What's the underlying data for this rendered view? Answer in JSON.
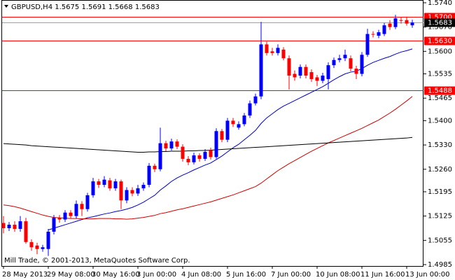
{
  "chart_data": {
    "type": "candlestick",
    "symbol": "GBPUSD,H4",
    "copyright": "Mill Trade, © 2001-2013, MetaQuotes Software Corp.",
    "categories": [
      "28 May 2013",
      null,
      null,
      null,
      null,
      null,
      null,
      null,
      "29 May 08:00",
      null,
      null,
      null,
      null,
      null,
      null,
      null,
      "30 May 16:00",
      null,
      null,
      null,
      null,
      null,
      null,
      null,
      "3 Jun 00:00",
      null,
      null,
      null,
      null,
      null,
      null,
      null,
      "4 Jun 08:00",
      null,
      null,
      null,
      null,
      null,
      null,
      null,
      "5 Jun 16:00",
      null,
      null,
      null,
      null,
      null,
      null,
      null,
      "7 Jun 00:00",
      null,
      null,
      null,
      null,
      null,
      null,
      null,
      "10 Jun 08:00",
      null,
      null,
      null,
      null,
      null,
      null,
      null,
      "11 Jun 16:00",
      null,
      null,
      null,
      null,
      null,
      null,
      null,
      "13 Jun 00:00",
      null
    ],
    "open": [
      1.5105,
      1.509,
      1.51,
      1.5088,
      1.511,
      1.505,
      1.504,
      1.503,
      1.503,
      1.508,
      1.512,
      1.5115,
      1.5135,
      1.5125,
      1.516,
      1.5145,
      1.5185,
      1.5225,
      1.5215,
      1.5228,
      1.5205,
      1.5225,
      1.517,
      1.52,
      1.519,
      1.5205,
      1.5215,
      1.527,
      1.526,
      1.5335,
      1.532,
      1.534,
      1.5325,
      1.529,
      1.528,
      1.53,
      1.529,
      1.5315,
      1.5295,
      1.537,
      1.5345,
      1.54,
      1.538,
      1.539,
      1.5415,
      1.545,
      1.547,
      1.562,
      1.56,
      1.5595,
      1.5605,
      1.558,
      1.5535,
      1.553,
      1.5555,
      1.554,
      1.5525,
      1.5515,
      1.552,
      1.556,
      1.5575,
      1.558,
      1.558,
      1.555,
      1.5535,
      1.559,
      1.565,
      1.5645,
      1.565,
      1.568,
      1.567,
      1.569,
      1.569,
      1.5675
    ],
    "high": [
      1.5125,
      1.5108,
      1.511,
      1.5125,
      1.512,
      1.5058,
      1.5048,
      1.5042,
      1.5088,
      1.5128,
      1.5128,
      1.5142,
      1.5142,
      1.517,
      1.5168,
      1.5192,
      1.5235,
      1.5232,
      1.524,
      1.5235,
      1.5232,
      1.523,
      1.5208,
      1.5208,
      1.5215,
      1.5222,
      1.5278,
      1.5276,
      1.538,
      1.5342,
      1.5348,
      1.5346,
      1.5332,
      1.5298,
      1.5308,
      1.5306,
      1.5318,
      1.5322,
      1.5378,
      1.5376,
      1.5408,
      1.5408,
      1.5398,
      1.5422,
      1.5458,
      1.5478,
      1.5685,
      1.5628,
      1.561,
      1.562,
      1.5612,
      1.5588,
      1.5545,
      1.5562,
      1.5562,
      1.5548,
      1.5532,
      1.5538,
      1.5568,
      1.5582,
      1.559,
      1.5605,
      1.5588,
      1.5558,
      1.5598,
      1.5665,
      1.5658,
      1.5662,
      1.5682,
      1.569,
      1.5705,
      1.5698,
      1.57,
      1.5691
    ],
    "low": [
      1.5075,
      1.5082,
      1.508,
      1.508,
      1.5045,
      1.5025,
      1.5015,
      1.5022,
      1.501,
      1.5072,
      1.5106,
      1.5108,
      1.5118,
      1.5118,
      1.5125,
      1.5138,
      1.5178,
      1.5206,
      1.5208,
      1.5198,
      1.5198,
      1.5145,
      1.5162,
      1.5182,
      1.5183,
      1.5198,
      1.5208,
      1.5252,
      1.5254,
      1.5312,
      1.5314,
      1.5318,
      1.5282,
      1.5272,
      1.5274,
      1.5282,
      1.5284,
      1.5288,
      1.529,
      1.5338,
      1.5338,
      1.5382,
      1.5374,
      1.5384,
      1.5408,
      1.5444,
      1.5462,
      1.5588,
      1.5588,
      1.5588,
      1.5574,
      1.549,
      1.5515,
      1.5522,
      1.5522,
      1.5512,
      1.55,
      1.5508,
      1.549,
      1.5552,
      1.5568,
      1.5572,
      1.5542,
      1.552,
      1.5528,
      1.5584,
      1.564,
      1.5638,
      1.5644,
      1.5662,
      1.5664,
      1.568,
      1.5674,
      1.5668
    ],
    "close": [
      1.509,
      1.51,
      1.5088,
      1.511,
      1.505,
      1.5035,
      1.503,
      1.5035,
      1.508,
      1.512,
      1.5115,
      1.5135,
      1.5125,
      1.516,
      1.5145,
      1.5185,
      1.5225,
      1.5215,
      1.523,
      1.5205,
      1.5225,
      1.517,
      1.52,
      1.519,
      1.5205,
      1.5215,
      1.527,
      1.526,
      1.5335,
      1.532,
      1.534,
      1.5325,
      1.529,
      1.528,
      1.53,
      1.529,
      1.531,
      1.5295,
      1.537,
      1.5345,
      1.54,
      1.539,
      1.539,
      1.5415,
      1.545,
      1.547,
      1.562,
      1.5595,
      1.5595,
      1.561,
      1.558,
      1.553,
      1.5525,
      1.5555,
      1.553,
      1.552,
      1.5515,
      1.553,
      1.556,
      1.5575,
      1.558,
      1.559,
      1.555,
      1.5535,
      1.559,
      1.565,
      1.5648,
      1.5655,
      1.5675,
      1.567,
      1.5695,
      1.5688,
      1.568,
      1.5683
    ],
    "up_color": "#0000ff",
    "down_color": "#ff0000",
    "moving_averages": [
      {
        "color": "#0000c0",
        "values": [
          null,
          null,
          null,
          null,
          null,
          null,
          null,
          null,
          1.5085,
          1.509,
          1.5095,
          1.51,
          1.5105,
          1.511,
          1.5115,
          1.512,
          1.5123,
          1.5127,
          1.5131,
          1.5134,
          1.5138,
          1.5141,
          1.5145,
          1.515,
          1.5157,
          1.5165,
          1.5175,
          1.5185,
          1.52,
          1.5212,
          1.5225,
          1.5235,
          1.5243,
          1.525,
          1.5258,
          1.5265,
          1.5272,
          1.5278,
          1.5288,
          1.5298,
          1.531,
          1.5322,
          1.5332,
          1.5345,
          1.5358,
          1.5372,
          1.5392,
          1.5408,
          1.542,
          1.5432,
          1.5442,
          1.545,
          1.5458,
          1.5466,
          1.5474,
          1.5482,
          1.549,
          1.5498,
          1.5508,
          1.5518,
          1.5527,
          1.5535,
          1.554,
          1.5543,
          1.555,
          1.556,
          1.5568,
          1.5574,
          1.558,
          1.5585,
          1.5592,
          1.5598,
          1.5602,
          1.5607
        ]
      },
      {
        "color": "#d00000",
        "values": [
          1.5157,
          1.5155,
          1.5152,
          1.5148,
          1.5143,
          1.5138,
          1.5133,
          1.5128,
          1.5124,
          1.5121,
          1.512,
          1.5119,
          1.5118,
          1.5118,
          1.5117,
          1.5117,
          1.5117,
          1.5118,
          1.5118,
          1.5118,
          1.5117,
          1.5117,
          1.5116,
          1.5117,
          1.5119,
          1.5121,
          1.5124,
          1.5127,
          1.5132,
          1.5135,
          1.5139,
          1.5143,
          1.5146,
          1.515,
          1.5154,
          1.5158,
          1.5162,
          1.5166,
          1.5171,
          1.5176,
          1.5181,
          1.5186,
          1.5192,
          1.5198,
          1.5204,
          1.521,
          1.522,
          1.5232,
          1.5244,
          1.5256,
          1.5266,
          1.5276,
          1.5285,
          1.5294,
          1.5303,
          1.5312,
          1.532,
          1.5328,
          1.5336,
          1.5343,
          1.535,
          1.5357,
          1.5364,
          1.5371,
          1.5378,
          1.5386,
          1.5394,
          1.5402,
          1.5412,
          1.5422,
          1.5433,
          1.5445,
          1.5457,
          1.547
        ]
      },
      {
        "color": "#000000",
        "values": [
          1.5334,
          1.5333,
          1.5332,
          1.5331,
          1.533,
          1.5328,
          1.5327,
          1.5326,
          1.5325,
          1.5324,
          1.5323,
          1.5322,
          1.5321,
          1.532,
          1.5319,
          1.5318,
          1.5317,
          1.5316,
          1.5315,
          1.5314,
          1.5313,
          1.5312,
          1.5311,
          1.531,
          1.5309,
          1.5309,
          1.531,
          1.531,
          1.5311,
          1.5311,
          1.5312,
          1.5312,
          1.5312,
          1.5313,
          1.5313,
          1.5314,
          1.5314,
          1.5315,
          1.5316,
          1.5317,
          1.5318,
          1.5319,
          1.532,
          1.5321,
          1.5322,
          1.5323,
          1.5324,
          1.5325,
          1.5326,
          1.5327,
          1.5328,
          1.5329,
          1.533,
          1.5331,
          1.5332,
          1.5333,
          1.5334,
          1.5335,
          1.5336,
          1.5337,
          1.5338,
          1.5339,
          1.534,
          1.5341,
          1.5342,
          1.5343,
          1.5344,
          1.5345,
          1.5346,
          1.5347,
          1.5348,
          1.5349,
          1.535,
          1.5352
        ]
      }
    ],
    "levels": [
      {
        "value": 1.57,
        "label": "1.5700"
      },
      {
        "value": 1.563,
        "label": "1.5630"
      },
      {
        "value": 1.5488,
        "label": "1.5488"
      }
    ],
    "level_color": "#ff0000",
    "ylim": [
      1.4981,
      1.5748
    ],
    "yticks": [
      {
        "value": 1.574,
        "label": "1.5740"
      },
      {
        "value": 1.567,
        "label": "1.5670"
      },
      {
        "value": 1.56,
        "label": "1.5600"
      },
      {
        "value": 1.5535,
        "label": "1.5535"
      },
      {
        "value": 1.5465,
        "label": "1.5465"
      },
      {
        "value": 1.54,
        "label": "1.5400"
      },
      {
        "value": 1.533,
        "label": "1.5330"
      },
      {
        "value": 1.526,
        "label": "1.5260"
      },
      {
        "value": 1.5195,
        "label": "1.5195"
      },
      {
        "value": 1.5125,
        "label": "1.5125"
      },
      {
        "value": 1.5055,
        "label": "1.5055"
      },
      {
        "value": 1.4985,
        "label": "1.4985"
      }
    ]
  }
}
